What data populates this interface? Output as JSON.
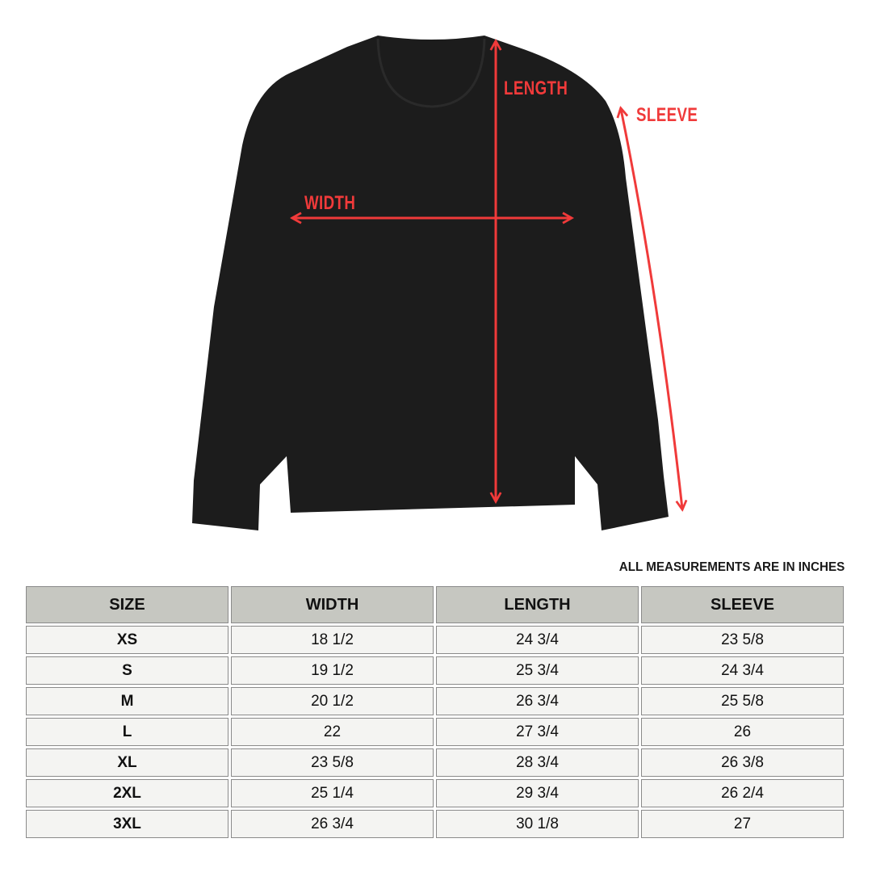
{
  "diagram": {
    "labels": {
      "length": "LENGTH",
      "width": "WIDTH",
      "sleeve": "SLEEVE"
    },
    "garment_color": "#1c1c1c",
    "arrow_color": "#f03a3a"
  },
  "note": "ALL MEASUREMENTS ARE IN INCHES",
  "table": {
    "headers": [
      "SIZE",
      "WIDTH",
      "LENGTH",
      "SLEEVE"
    ],
    "rows": [
      [
        "XS",
        "18 1/2",
        "24 3/4",
        "23 5/8"
      ],
      [
        "S",
        "19 1/2",
        "25 3/4",
        "24 3/4"
      ],
      [
        "M",
        "20 1/2",
        "26 3/4",
        "25 5/8"
      ],
      [
        "L",
        "22",
        "27 3/4",
        "26"
      ],
      [
        "XL",
        "23 5/8",
        "28 3/4",
        "26 3/8"
      ],
      [
        "2XL",
        "25 1/4",
        "29 3/4",
        "26 2/4"
      ],
      [
        "3XL",
        "26 3/4",
        "30 1/8",
        "27"
      ]
    ],
    "header_bg": "#c6c7c1",
    "cell_bg": "#f4f4f2"
  }
}
